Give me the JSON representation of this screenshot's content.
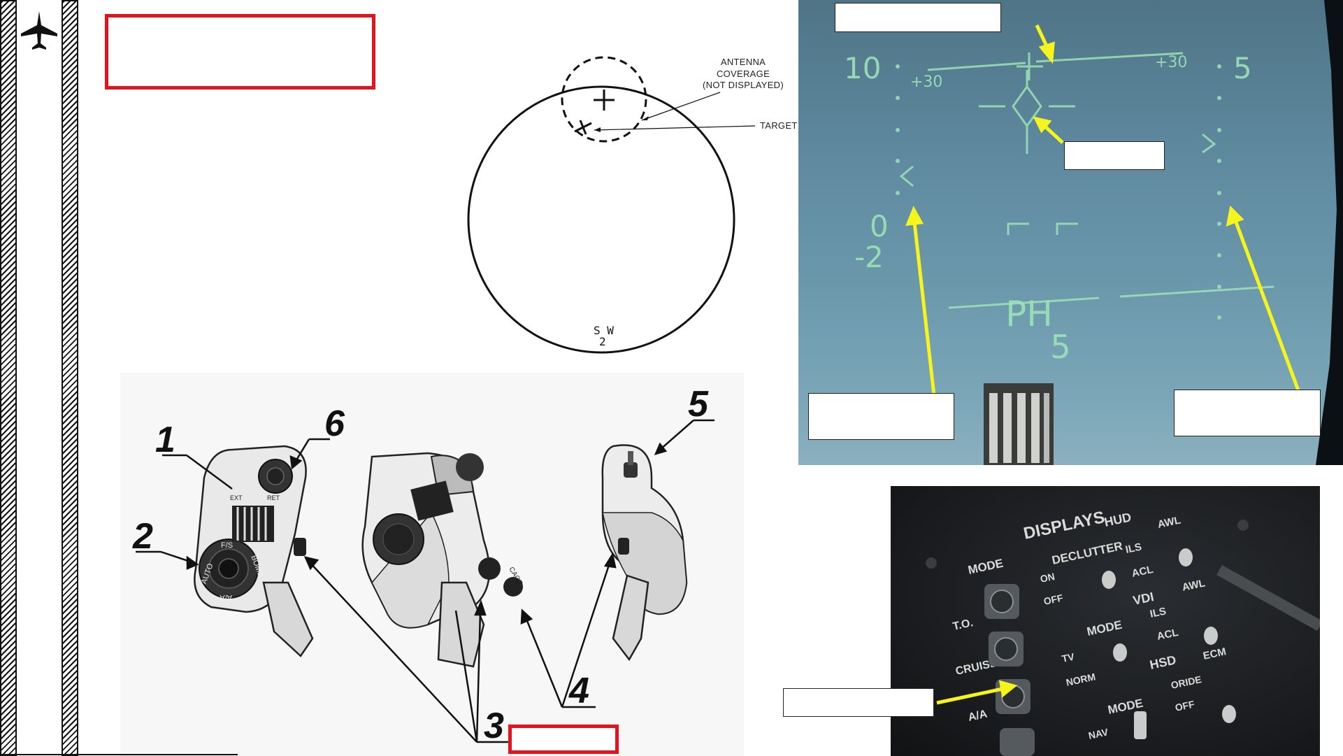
{
  "sidebar": {
    "icon": "fighter-jet-icon"
  },
  "radar_diagram": {
    "antenna_label_lines": [
      "ANTENNA",
      "COVERAGE",
      "(NOT DISPLAYED)"
    ],
    "target_label": "TARGET",
    "bottom_marker": "S W\n2"
  },
  "hud": {
    "left_scale_top": "10",
    "left_pitch": "+30",
    "right_pitch": "+30",
    "right_scale_top": "5",
    "left_scale_mid": "0",
    "left_scale_low": "-2",
    "mode_text": "PH",
    "mode_value": "5"
  },
  "displays_panel": {
    "title": "DISPLAYS",
    "hud_group": "HUD",
    "hud_labels": [
      "DECLUTTER",
      "AWL",
      "ILS",
      "ACL"
    ],
    "vdi_group": "VDI",
    "vdi_labels": [
      "MODE",
      "AWL",
      "ILS",
      "ACL",
      "TV",
      "NORM"
    ],
    "hsd_group": "HSD",
    "hsd_labels": [
      "MODE",
      "ECM",
      "ORIDE",
      "OFF",
      "NAV"
    ],
    "mode_labels": [
      "MODE",
      "T.O.",
      "CRUISE",
      "A/A"
    ],
    "switch_labels": [
      "ON",
      "OFF"
    ]
  },
  "throttle_diagram": {
    "callouts": [
      "1",
      "2",
      "3",
      "4",
      "5",
      "6"
    ],
    "switch_labels": [
      "EXT",
      "RET",
      "AUTO",
      "BOMB",
      "A/A",
      "F/S",
      "CAGE"
    ]
  },
  "colors": {
    "red_box": "#e5141c",
    "yellow_arrow": "#f5f51c",
    "hud_symbology": "#9be3b6"
  }
}
